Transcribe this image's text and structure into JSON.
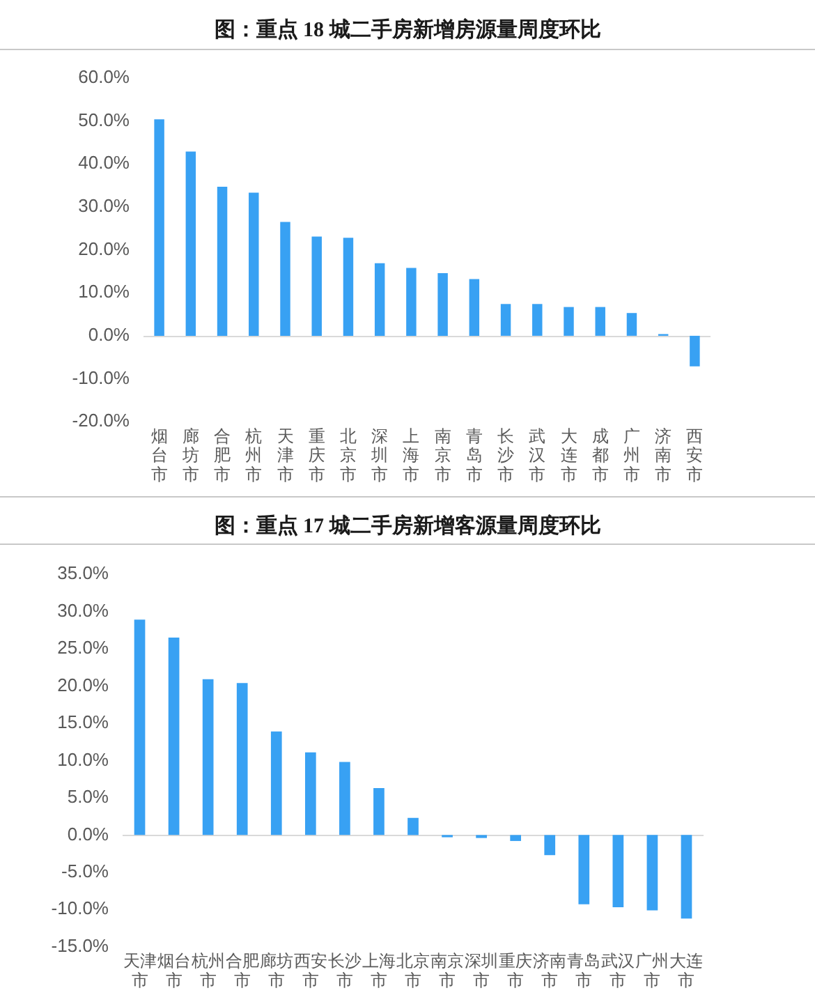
{
  "chart_data": [
    {
      "type": "bar",
      "title": "图：重点 18 城二手房新增房源量周度环比",
      "categories": [
        "烟台市",
        "廊坊市",
        "合肥市",
        "杭州市",
        "天津市",
        "重庆市",
        "北京市",
        "深圳市",
        "上海市",
        "南京市",
        "青岛市",
        "长沙市",
        "武汉市",
        "大连市",
        "成都市",
        "广州市",
        "济南市",
        "西安市"
      ],
      "values": [
        50.4,
        42.9,
        34.7,
        33.3,
        26.5,
        23.1,
        22.8,
        16.9,
        15.8,
        14.6,
        13.2,
        7.4,
        7.4,
        6.7,
        6.7,
        5.3,
        0.4,
        -7.1
      ],
      "color": "#38a1f3",
      "ylim": [
        -20,
        60
      ],
      "yticks": [
        {
          "value": -20,
          "label": "-20.0%"
        },
        {
          "value": -10,
          "label": "-10.0%"
        },
        {
          "value": 0,
          "label": "0.0%"
        },
        {
          "value": 10,
          "label": "10.0%"
        },
        {
          "value": 20,
          "label": "20.0%"
        },
        {
          "value": 30,
          "label": "30.0%"
        },
        {
          "value": 40,
          "label": "40.0%"
        },
        {
          "value": 50,
          "label": "50.0%"
        },
        {
          "value": 60,
          "label": "60.0%"
        }
      ],
      "ref_lines": [
        {
          "axis": "y",
          "value": 0,
          "color": "#d9d9d9"
        }
      ],
      "grid": false,
      "legend": false
    },
    {
      "type": "bar",
      "title": "图：重点 17 城二手房新增客源量周度环比",
      "categories": [
        "天津市",
        "烟台市",
        "杭州市",
        "合肥市",
        "廊坊市",
        "西安市",
        "长沙市",
        "上海市",
        "北京市",
        "南京市",
        "深圳市",
        "重庆市",
        "济南市",
        "青岛市",
        "武汉市",
        "广州市",
        "大连市"
      ],
      "values": [
        28.9,
        26.5,
        20.9,
        20.4,
        13.9,
        11.1,
        9.8,
        6.3,
        2.3,
        -0.3,
        -0.4,
        -0.8,
        -2.7,
        -9.3,
        -9.7,
        -10.1,
        -11.2
      ],
      "color": "#38a1f3",
      "ylim": [
        -15,
        35
      ],
      "yticks": [
        {
          "value": -15,
          "label": "-15.0%"
        },
        {
          "value": -10,
          "label": "-10.0%"
        },
        {
          "value": -5,
          "label": "-5.0%"
        },
        {
          "value": 0,
          "label": "0.0%"
        },
        {
          "value": 5,
          "label": "5.0%"
        },
        {
          "value": 10,
          "label": "10.0%"
        },
        {
          "value": 15,
          "label": "15.0%"
        },
        {
          "value": 20,
          "label": "20.0%"
        },
        {
          "value": 25,
          "label": "25.0%"
        },
        {
          "value": 30,
          "label": "30.0%"
        },
        {
          "value": 35,
          "label": "35.0%"
        }
      ],
      "ref_lines": [
        {
          "axis": "y",
          "value": 0,
          "color": "#d9d9d9"
        }
      ],
      "grid": false,
      "legend": false
    }
  ]
}
